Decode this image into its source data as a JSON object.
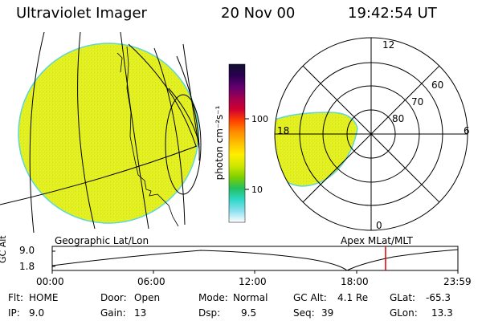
{
  "header": {
    "instrument": "Ultraviolet Imager",
    "date": "20 Nov 00",
    "time": "19:42:54 UT"
  },
  "colors": {
    "auroral_fill": "#e6f01e",
    "fill_edge": "#5fd6d6",
    "orbit_marker": "#e00000"
  },
  "colorbar": {
    "unit_label": "photon cm⁻²s⁻¹",
    "ticks": [
      {
        "value": 100,
        "label": "100"
      },
      {
        "value": 10,
        "label": "10"
      }
    ],
    "scale": "log",
    "stops": [
      "#101030",
      "#2a0050",
      "#600070",
      "#a00050",
      "#d00030",
      "#ff4000",
      "#ff8c00",
      "#ffc000",
      "#ffee00",
      "#cfe800",
      "#7ed000",
      "#22c060",
      "#30d8c8",
      "#8ce0f0",
      "#ffffff"
    ]
  },
  "polar_plot": {
    "mlt_labels": [
      {
        "text": "12"
      },
      {
        "text": "6"
      },
      {
        "text": "18"
      },
      {
        "text": "0"
      }
    ],
    "mlat_labels": [
      {
        "text": "60"
      },
      {
        "text": "70"
      },
      {
        "text": "80"
      }
    ]
  },
  "orbit_plot": {
    "left_title": "Geographic Lat/Lon",
    "right_title": "Apex MLat/MLT",
    "axis_title": "GC Alt",
    "y_ticks": [
      "9.0",
      "1.8"
    ],
    "x_ticks": [
      "00:00",
      "06:00",
      "12:00",
      "18:00",
      "23:59"
    ],
    "current_time_hours": 19.72
  },
  "status": {
    "flt_label": "Flt:",
    "flt_value": "HOME",
    "ip_label": "IP:",
    "ip_value": "9.0",
    "door_label": "Door:",
    "door_value": "Open",
    "gain_label": "Gain:",
    "gain_value": "13",
    "mode_label": "Mode:",
    "mode_value": "Normal",
    "dsp_label": "Dsp:",
    "dsp_value": "9.5",
    "gcalt_label": "GC Alt:",
    "gcalt_value": "4.1 Re",
    "seq_label": "Seq:",
    "seq_value": "39",
    "glat_label": "GLat:",
    "glat_value": "-65.3",
    "glon_label": "GLon:",
    "glon_value": "13.3"
  }
}
